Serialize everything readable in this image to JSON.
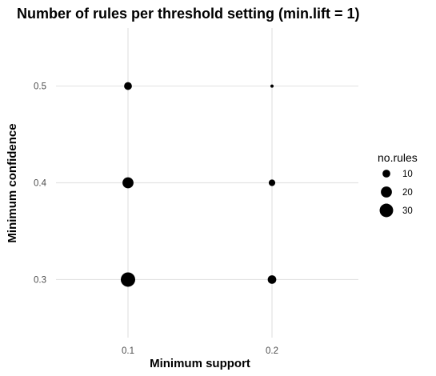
{
  "chart_data": {
    "type": "scatter",
    "title": "Number of rules per threshold setting (min.lift = 1)",
    "xlabel": "Minimum support",
    "ylabel": "Minimum confidence",
    "x_ticks": [
      "0.1",
      "0.2"
    ],
    "y_ticks": [
      "0.3",
      "0.4",
      "0.5"
    ],
    "xlim": [
      0.05,
      0.26
    ],
    "ylim": [
      0.24,
      0.56
    ],
    "grid": true,
    "legend": {
      "title": "no.rules",
      "position": "right",
      "entries": [
        {
          "label": "10",
          "value": 10
        },
        {
          "label": "20",
          "value": 20
        },
        {
          "label": "30",
          "value": 30
        }
      ]
    },
    "size_variable": "no.rules",
    "points": [
      {
        "x": 0.1,
        "y": 0.5,
        "size": 10
      },
      {
        "x": 0.1,
        "y": 0.4,
        "size": 20
      },
      {
        "x": 0.1,
        "y": 0.3,
        "size": 34
      },
      {
        "x": 0.2,
        "y": 0.5,
        "size": 1
      },
      {
        "x": 0.2,
        "y": 0.4,
        "size": 7
      },
      {
        "x": 0.2,
        "y": 0.3,
        "size": 12
      }
    ]
  }
}
